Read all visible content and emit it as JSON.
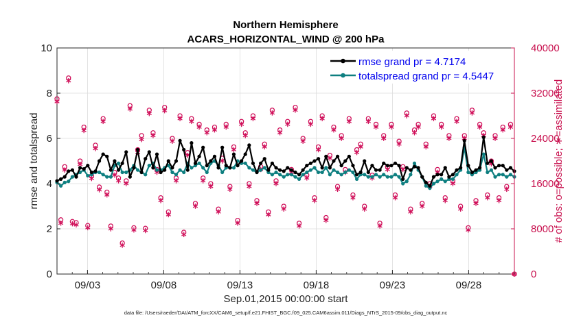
{
  "chart_data": {
    "type": "line",
    "title_line1": "Northern Hemisphere",
    "title_line2": "ACARS_HORIZONTAL_WIND @ 200 hPa",
    "ylabel": "rmse and totalspread",
    "y2label": "# of obs: o=possible; ∗=assimilated",
    "xlabel": "Sep.01,2015 00:00:00 start",
    "footnote": "data file: /Users/raeder/DAI/ATM_forcXX/CAM6_setup/f.e21.FHIST_BGC.f09_025.CAM6assim.011/Diags_NTrS_2015-09/obs_diag_output.nc",
    "ylim": [
      0,
      10
    ],
    "y2lim": [
      0,
      40000
    ],
    "xlim": [
      1.0,
      31.0
    ],
    "yticks": [
      0,
      2,
      4,
      6,
      8,
      10
    ],
    "y2ticks": [
      0,
      8000,
      16000,
      24000,
      32000,
      40000
    ],
    "y2tick_labels": [
      "0",
      "8000",
      "16000",
      "24000",
      "32000",
      "40000"
    ],
    "xticks": [
      3,
      8,
      13,
      18,
      23,
      28
    ],
    "xtick_labels": [
      "09/03",
      "09/08",
      "09/13",
      "09/18",
      "09/23",
      "09/28"
    ],
    "colors": {
      "rmse": "#000000",
      "spread": "#0e7f80",
      "obs": "#d0105a",
      "axis2": "#c8104e",
      "legend_text": "#0000ee"
    },
    "series": [
      {
        "name": "rmse grand pr = 4.7174",
        "color": "#000000",
        "values": [
          4.12,
          4.2,
          4.3,
          4.55,
          4.6,
          4.3,
          4.7,
          4.65,
          4.8,
          4.5,
          4.55,
          5.0,
          5.3,
          5.2,
          4.6,
          5.0,
          4.6,
          4.9,
          5.4,
          4.3,
          4.7,
          5.5,
          4.5,
          5.1,
          5.4,
          4.7,
          5.3,
          4.5,
          4.6,
          5.0,
          4.7,
          5.0,
          5.9,
          5.5,
          4.6,
          5.8,
          4.9,
          5.2,
          5.6,
          4.8,
          5.0,
          5.2,
          4.7,
          5.6,
          4.8,
          4.7,
          5.3,
          4.8,
          5.0,
          5.3,
          5.7,
          4.9,
          4.5,
          4.9,
          5.1,
          4.6,
          4.9,
          4.7,
          4.6,
          4.55,
          4.7,
          4.6,
          4.5,
          4.4,
          4.6,
          4.8,
          4.9,
          5.0,
          5.1,
          4.7,
          5.2,
          4.7,
          5.0,
          5.2,
          4.8,
          5.0,
          5.2,
          4.8,
          4.4,
          4.5,
          5.0,
          4.5,
          4.8,
          4.6,
          4.6,
          4.9,
          4.8,
          4.8,
          4.9,
          4.8,
          4.2,
          4.7,
          4.6,
          4.75,
          4.7,
          4.3,
          4.05,
          3.9,
          4.3,
          4.4,
          4.4,
          4.7,
          4.3,
          4.4,
          4.6,
          4.7,
          5.9,
          4.8,
          4.5,
          4.6,
          4.7,
          6.05,
          4.9,
          5.0,
          4.7,
          4.8,
          4.8,
          4.6,
          4.7,
          4.55
        ]
      },
      {
        "name": "totalspread grand pr = 4.5447",
        "color": "#0e7f80",
        "values": [
          4.05,
          3.9,
          4.05,
          4.1,
          4.3,
          4.4,
          4.5,
          4.6,
          4.35,
          4.4,
          4.5,
          4.5,
          4.4,
          4.3,
          4.3,
          4.8,
          4.9,
          4.5,
          4.5,
          4.6,
          4.8,
          4.6,
          4.5,
          4.4,
          4.8,
          4.9,
          4.6,
          4.6,
          4.7,
          4.8,
          4.5,
          4.4,
          4.6,
          4.5,
          4.9,
          4.7,
          4.8,
          4.9,
          4.7,
          4.5,
          4.9,
          5.0,
          4.8,
          4.5,
          4.7,
          4.7,
          4.7,
          5.0,
          4.9,
          4.9,
          4.7,
          4.6,
          4.5,
          4.6,
          4.7,
          4.5,
          4.4,
          4.5,
          4.4,
          4.3,
          4.4,
          4.4,
          4.3,
          4.2,
          4.4,
          4.5,
          4.6,
          4.7,
          4.5,
          4.5,
          4.7,
          4.4,
          4.6,
          4.5,
          4.4,
          4.5,
          4.6,
          4.5,
          4.2,
          4.4,
          4.4,
          4.3,
          4.3,
          4.4,
          4.3,
          4.4,
          4.3,
          4.3,
          4.4,
          4.3,
          4.0,
          4.1,
          4.4,
          4.9,
          4.6,
          4.3,
          3.9,
          3.8,
          4.0,
          4.1,
          4.2,
          4.1,
          4.2,
          4.2,
          4.4,
          4.6,
          5.6,
          4.5,
          4.4,
          4.5,
          4.6,
          5.3,
          4.5,
          4.6,
          4.3,
          4.4,
          4.4,
          4.3,
          4.4,
          4.3
        ]
      },
      {
        "name": "obs possible",
        "marker": "o",
        "color": "#d0105a",
        "axis": "right",
        "values": [
          31000,
          9600,
          19000,
          34700,
          9300,
          9100,
          20000,
          26000,
          8600,
          17400,
          22800,
          15400,
          27500,
          14500,
          8500,
          18000,
          17000,
          5500,
          16500,
          29800,
          8200,
          22000,
          24500,
          8100,
          29000,
          25000,
          18500,
          13500,
          29500,
          11000,
          24000,
          17000,
          28000,
          7400,
          21500,
          27500,
          12500,
          26500,
          17000,
          25500,
          16000,
          26000,
          11500,
          20500,
          26500,
          15500,
          22500,
          9500,
          27000,
          25000,
          16000,
          28000,
          13000,
          19000,
          23000,
          11000,
          29000,
          16500,
          25500,
          12000,
          27000,
          18500,
          29500,
          9000,
          24000,
          17500,
          27000,
          13500,
          22500,
          28000,
          10000,
          21000,
          26000,
          15500,
          24500,
          18500,
          27500,
          14000,
          22000,
          23000,
          12000,
          27500,
          17500,
          26500,
          9000,
          24500,
          19000,
          26500,
          14000,
          23500,
          19000,
          28500,
          11500,
          25500,
          26500,
          12500,
          23000,
          16000,
          28000,
          18500,
          26500,
          13500,
          24500,
          16500,
          27500,
          12000,
          24500,
          8200,
          29000,
          13000,
          26500,
          25000,
          14000,
          20000,
          24500,
          13500,
          26000,
          15500,
          26500,
          0
        ]
      },
      {
        "name": "obs assimilated",
        "marker": "*",
        "color": "#d0105a",
        "axis": "right",
        "values": [
          30500,
          9000,
          18400,
          34200,
          8900,
          8700,
          19400,
          25400,
          8200,
          16900,
          22200,
          14900,
          27000,
          14000,
          8000,
          17500,
          16500,
          5100,
          16000,
          29200,
          7800,
          21500,
          23800,
          7700,
          28400,
          24500,
          18000,
          13000,
          28900,
          10500,
          23500,
          16500,
          27500,
          7000,
          21000,
          27000,
          12000,
          26000,
          16500,
          25000,
          15500,
          25500,
          11000,
          20000,
          26000,
          15000,
          22000,
          9000,
          26500,
          24500,
          15500,
          27500,
          12500,
          18500,
          22500,
          10500,
          28500,
          16000,
          25000,
          11500,
          26500,
          18000,
          29000,
          8500,
          23500,
          17000,
          26500,
          13000,
          22000,
          27500,
          9500,
          20500,
          25500,
          15000,
          24000,
          18000,
          27000,
          13500,
          21500,
          22500,
          11500,
          27000,
          17000,
          26000,
          8500,
          24000,
          18500,
          26000,
          13500,
          23000,
          18500,
          28000,
          11000,
          25000,
          26000,
          12000,
          22500,
          15500,
          27500,
          18000,
          26000,
          13000,
          24000,
          16000,
          27000,
          11500,
          24000,
          7800,
          28500,
          12500,
          26000,
          24500,
          13500,
          19500,
          24000,
          13000,
          25500,
          15000,
          26000,
          0
        ]
      }
    ],
    "legend": {
      "placement": "top-right",
      "entries": [
        "rmse grand pr = 4.7174",
        "totalspread grand pr = 4.5447"
      ]
    }
  }
}
